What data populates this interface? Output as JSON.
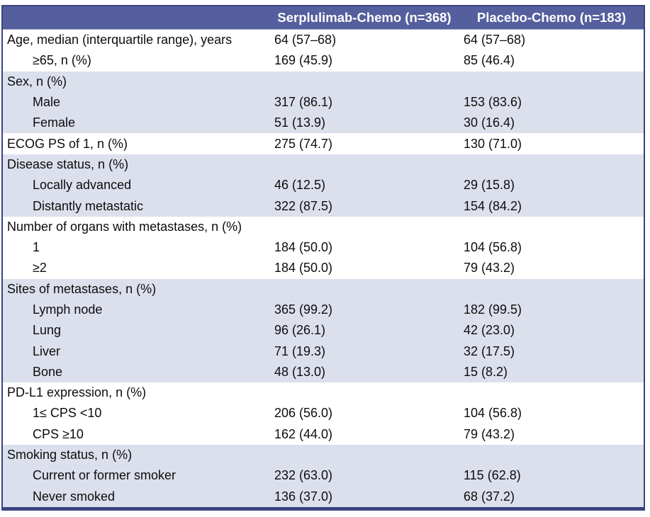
{
  "colors": {
    "header_bg": "#555f9d",
    "header_text": "#ffffff",
    "row_shade": "#dce0ec",
    "row_white": "#ffffff",
    "border": "#3a437f",
    "header_divider": "#a8aec8",
    "text": "#0d0d0d"
  },
  "table": {
    "header": {
      "characteristic_label": "",
      "col_a": "Serplulimab-Chemo (n=368)",
      "col_b": "Placebo-Chemo (n=183)"
    },
    "rows": [
      {
        "label": "Age, median (interquartile range), years",
        "a": "64 (57–68)",
        "b": "64 (57–68)",
        "indent": false,
        "shaded": false
      },
      {
        "label": "≥65, n (%)",
        "a": "169 (45.9)",
        "b": "85 (46.4)",
        "indent": true,
        "shaded": false
      },
      {
        "label": "Sex, n (%)",
        "a": "",
        "b": "",
        "indent": false,
        "shaded": true
      },
      {
        "label": "Male",
        "a": "317 (86.1)",
        "b": "153 (83.6)",
        "indent": true,
        "shaded": true
      },
      {
        "label": "Female",
        "a": "51 (13.9)",
        "b": "30 (16.4)",
        "indent": true,
        "shaded": true
      },
      {
        "label": "ECOG PS of 1, n (%)",
        "a": "275 (74.7)",
        "b": "130 (71.0)",
        "indent": false,
        "shaded": false
      },
      {
        "label": "Disease status, n (%)",
        "a": "",
        "b": "",
        "indent": false,
        "shaded": true
      },
      {
        "label": "Locally advanced",
        "a": "46 (12.5)",
        "b": "29 (15.8)",
        "indent": true,
        "shaded": true
      },
      {
        "label": "Distantly metastatic",
        "a": "322 (87.5)",
        "b": "154 (84.2)",
        "indent": true,
        "shaded": true
      },
      {
        "label": "Number of organs with metastases, n (%)",
        "a": "",
        "b": "",
        "indent": false,
        "shaded": false
      },
      {
        "label": "1",
        "a": "184 (50.0)",
        "b": "104 (56.8)",
        "indent": true,
        "shaded": false
      },
      {
        "label": "≥2",
        "a": "184 (50.0)",
        "b": "79 (43.2)",
        "indent": true,
        "shaded": false
      },
      {
        "label": "Sites of metastases, n (%)",
        "a": "",
        "b": "",
        "indent": false,
        "shaded": true
      },
      {
        "label": "Lymph node",
        "a": "365 (99.2)",
        "b": "182 (99.5)",
        "indent": true,
        "shaded": true
      },
      {
        "label": "Lung",
        "a": "96 (26.1)",
        "b": "42 (23.0)",
        "indent": true,
        "shaded": true
      },
      {
        "label": "Liver",
        "a": "71 (19.3)",
        "b": "32 (17.5)",
        "indent": true,
        "shaded": true
      },
      {
        "label": "Bone",
        "a": "48 (13.0)",
        "b": "15 (8.2)",
        "indent": true,
        "shaded": true
      },
      {
        "label": "PD-L1 expression, n (%)",
        "a": "",
        "b": "",
        "indent": false,
        "shaded": false
      },
      {
        "label": "1≤ CPS <10",
        "a": "206 (56.0)",
        "b": "104 (56.8)",
        "indent": true,
        "shaded": false
      },
      {
        "label": "CPS ≥10",
        "a": "162 (44.0)",
        "b": "79 (43.2)",
        "indent": true,
        "shaded": false
      },
      {
        "label": "Smoking status, n (%)",
        "a": "",
        "b": "",
        "indent": false,
        "shaded": true
      },
      {
        "label": "Current or former smoker",
        "a": "232 (63.0)",
        "b": "115 (62.8)",
        "indent": true,
        "shaded": true
      },
      {
        "label": "Never smoked",
        "a": "136 (37.0)",
        "b": "68 (37.2)",
        "indent": true,
        "shaded": true
      }
    ]
  }
}
